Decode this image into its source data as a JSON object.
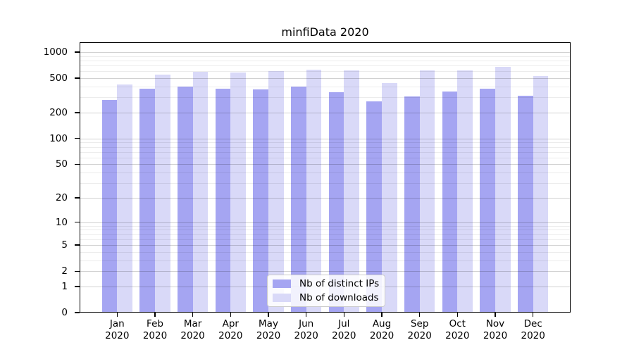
{
  "title": "minfiData 2020",
  "chart_data": {
    "type": "bar",
    "title": "minfiData 2020",
    "categories": [
      "Jan",
      "Feb",
      "Mar",
      "Apr",
      "May",
      "Jun",
      "Jul",
      "Aug",
      "Sep",
      "Oct",
      "Nov",
      "Dec"
    ],
    "x_tick_second_line": "2020",
    "series": [
      {
        "name": "Nb of distinct IPs",
        "color": "#a5a5f2",
        "values": [
          283,
          378,
          402,
          378,
          371,
          402,
          344,
          269,
          308,
          349,
          378,
          313
        ]
      },
      {
        "name": "Nb of downloads",
        "color": "#d9d9f8",
        "values": [
          423,
          549,
          591,
          584,
          602,
          622,
          610,
          436,
          610,
          614,
          673,
          532
        ]
      }
    ],
    "y_scale": "symlog",
    "y_ticks": [
      0,
      1,
      2,
      5,
      10,
      20,
      50,
      100,
      200,
      500,
      1000
    ],
    "y_minor_ticks": [
      3,
      4,
      6,
      7,
      8,
      9,
      30,
      40,
      60,
      70,
      80,
      90,
      300,
      400,
      600,
      700,
      800,
      900
    ],
    "ylim": [
      0,
      1325
    ],
    "grid": true,
    "legend_position": "lower center"
  }
}
